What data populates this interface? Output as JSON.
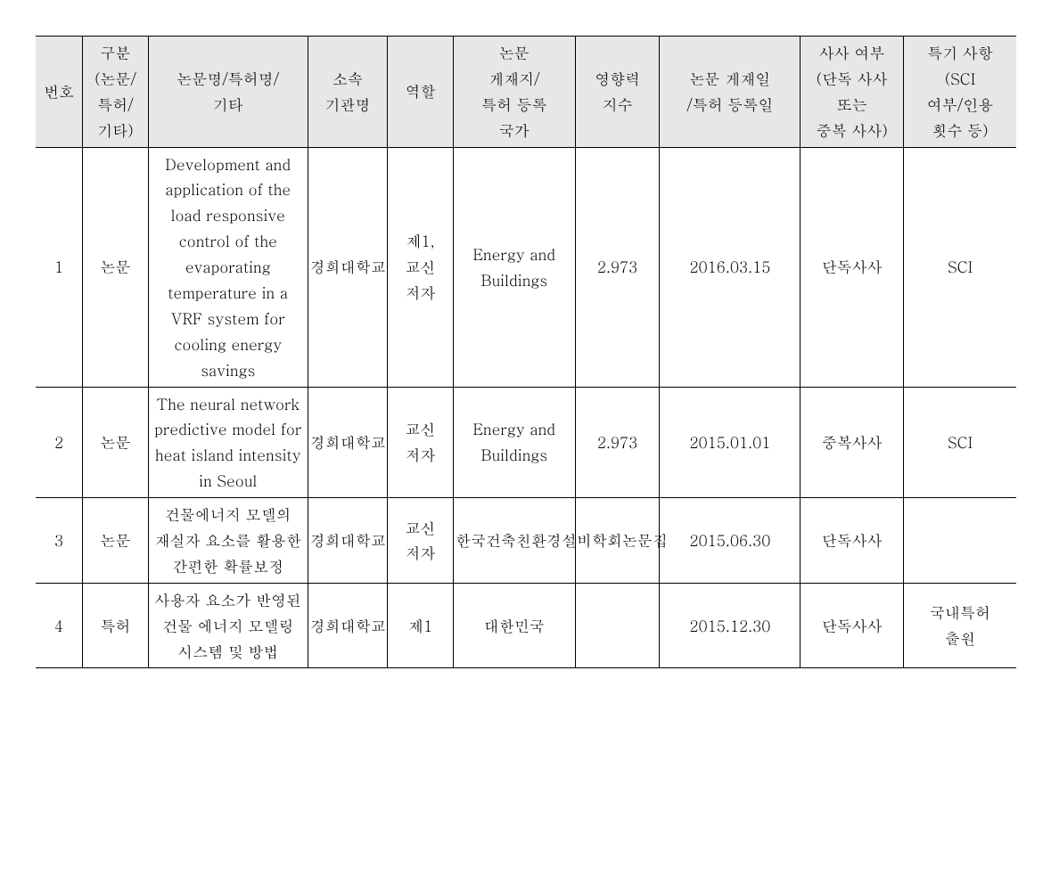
{
  "background_color": "#ffffff",
  "header_bg": "#e7e7e7",
  "border_color": "#000000",
  "font_size": 17,
  "columns": [
    "번호",
    "구분\n(논문/\n특허/\n기타)",
    "논문명/특허명/\n기타",
    "소속\n기관명",
    "역할",
    "논문\n게재지/\n특허 등록\n국가",
    "영향력\n지수",
    "논문 게재일\n/특허 등록일",
    "사사 여부\n(단독 사사\n또는\n중복 사사)",
    "특기 사항\n(SCI\n여부/인용\n횟수 등)"
  ],
  "rows": [
    {
      "no": "1",
      "type": "논문",
      "title": "Development and application of the load responsive control of the evaporating temperature in a VRF system for cooling energy savings",
      "org": "경희대학교",
      "role": "제1,\n교신\n저자",
      "journal": "Energy and Buildings",
      "impact": "2.973",
      "date": "2016.03.15",
      "ack": "단독사사",
      "note": "SCI"
    },
    {
      "no": "2",
      "type": "논문",
      "title": "The neural network predictive model for heat island intensity in Seoul",
      "org": "경희대학교",
      "role": "교신\n저자",
      "journal": "Energy and Buildings",
      "impact": "2.973",
      "date": "2015.01.01",
      "ack": "중복사사",
      "note": "SCI"
    },
    {
      "no": "3",
      "type": "논문",
      "title": "건물에너지 모델의 재실자 요소를 활용한 간편한 확률보정",
      "org": "경희대학교",
      "role": "교신\n저자",
      "journal": "한국건축친환경설비학회논문집",
      "impact": "",
      "date": "2015.06.30",
      "ack": "단독사사",
      "note": ""
    },
    {
      "no": "4",
      "type": "특허",
      "title": "사용자 요소가 반영된 건물 에너지 모델링 시스템 및 방법",
      "org": "경희대학교",
      "role": "제1",
      "journal": "대한민국",
      "impact": "",
      "date": "2015.12.30",
      "ack": "단독사사",
      "note": "국내특허\n출원"
    }
  ]
}
